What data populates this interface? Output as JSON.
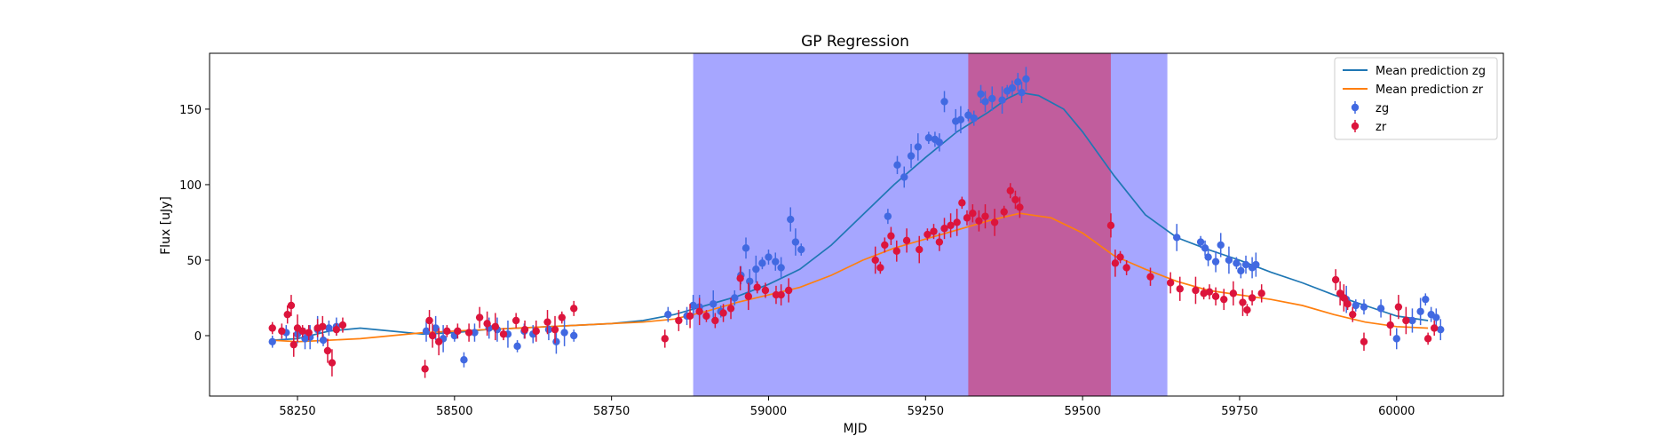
{
  "chart_data": {
    "type": "scatter",
    "title": "GP Regression",
    "xlabel": "MJD",
    "ylabel": "Flux [uJy]",
    "xlim": [
      58110,
      60170
    ],
    "ylim": [
      -40,
      187
    ],
    "xticks": [
      58250,
      58500,
      58750,
      59000,
      59250,
      59500,
      59750,
      60000
    ],
    "yticks": [
      0,
      50,
      100,
      150
    ],
    "legend_position": "top-right",
    "legend": [
      "Mean prediction zg",
      "Mean prediction zr",
      "zg",
      "zr"
    ],
    "shaded_regions": [
      {
        "x": [
          58880,
          59635
        ],
        "color": "#6666ff",
        "opacity": 0.58
      },
      {
        "x": [
          59318,
          59545
        ],
        "color": "#dc143c",
        "opacity": 0.5
      }
    ],
    "lines": [
      {
        "name": "Mean prediction zg",
        "color": "#1f77b4",
        "x": [
          58210,
          58250,
          58300,
          58350,
          58400,
          58450,
          58500,
          58550,
          58600,
          58650,
          58700,
          58750,
          58800,
          58850,
          58900,
          58950,
          59000,
          59050,
          59100,
          59150,
          59200,
          59250,
          59300,
          59350,
          59380,
          59400,
          59430,
          59470,
          59500,
          59550,
          59600,
          59650,
          59700,
          59750,
          59800,
          59850,
          59900,
          59950,
          60000,
          60050
        ],
        "y": [
          -3,
          -2,
          3,
          5,
          3,
          1,
          2,
          4,
          5,
          6,
          7,
          8,
          10,
          14,
          20,
          26,
          34,
          44,
          60,
          80,
          100,
          118,
          135,
          148,
          157,
          161,
          159,
          150,
          135,
          106,
          80,
          65,
          57,
          50,
          42,
          35,
          27,
          20,
          13,
          10
        ]
      },
      {
        "name": "Mean prediction zr",
        "color": "#ff7f0e",
        "x": [
          58210,
          58250,
          58300,
          58350,
          58400,
          58450,
          58500,
          58550,
          58600,
          58650,
          58700,
          58750,
          58800,
          58850,
          58900,
          58950,
          59000,
          59050,
          59100,
          59150,
          59200,
          59250,
          59300,
          59350,
          59400,
          59450,
          59500,
          59550,
          59600,
          59650,
          59700,
          59750,
          59800,
          59850,
          59900,
          59950,
          60000,
          60050
        ],
        "y": [
          -3,
          -4,
          -3,
          -2,
          0,
          2,
          3,
          4,
          5,
          6,
          7,
          8,
          9,
          11,
          16,
          22,
          27,
          32,
          40,
          50,
          58,
          64,
          70,
          76,
          81,
          78,
          68,
          53,
          44,
          36,
          30,
          27,
          24,
          20,
          14,
          9,
          6,
          5
        ]
      }
    ],
    "series": [
      {
        "name": "zg",
        "color": "#4169e1",
        "points": [
          [
            58210,
            -4
          ],
          [
            58232,
            2
          ],
          [
            58250,
            1
          ],
          [
            58262,
            -2
          ],
          [
            58270,
            -1
          ],
          [
            58282,
            4
          ],
          [
            58291,
            -3
          ],
          [
            58300,
            5
          ],
          [
            58312,
            6
          ],
          [
            58455,
            3
          ],
          [
            58470,
            5
          ],
          [
            58482,
            -2
          ],
          [
            58500,
            0
          ],
          [
            58515,
            -16
          ],
          [
            58532,
            2
          ],
          [
            58555,
            5
          ],
          [
            58568,
            4
          ],
          [
            58585,
            1
          ],
          [
            58600,
            -7
          ],
          [
            58611,
            3
          ],
          [
            58625,
            1
          ],
          [
            58650,
            4
          ],
          [
            58662,
            -4
          ],
          [
            58675,
            2
          ],
          [
            58690,
            0
          ],
          [
            58840,
            14
          ],
          [
            58870,
            13
          ],
          [
            58880,
            20
          ],
          [
            58890,
            19
          ],
          [
            58912,
            21
          ],
          [
            58924,
            16
          ],
          [
            58946,
            25
          ],
          [
            58956,
            40
          ],
          [
            58964,
            58
          ],
          [
            58970,
            36
          ],
          [
            58980,
            44
          ],
          [
            58990,
            48
          ],
          [
            59000,
            52
          ],
          [
            59011,
            49
          ],
          [
            59020,
            45
          ],
          [
            59035,
            77
          ],
          [
            59043,
            62
          ],
          [
            59052,
            57
          ],
          [
            59190,
            79
          ],
          [
            59205,
            113
          ],
          [
            59216,
            105
          ],
          [
            59227,
            119
          ],
          [
            59238,
            125
          ],
          [
            59255,
            131
          ],
          [
            59265,
            130
          ],
          [
            59272,
            128
          ],
          [
            59280,
            155
          ],
          [
            59298,
            142
          ],
          [
            59306,
            143
          ],
          [
            59318,
            146
          ],
          [
            59327,
            144
          ],
          [
            59338,
            160
          ],
          [
            59345,
            155
          ],
          [
            59356,
            157
          ],
          [
            59372,
            156
          ],
          [
            59380,
            162
          ],
          [
            59388,
            164
          ],
          [
            59397,
            168
          ],
          [
            59403,
            161
          ],
          [
            59410,
            170
          ],
          [
            59650,
            65
          ],
          [
            59688,
            62
          ],
          [
            59695,
            58
          ],
          [
            59700,
            52
          ],
          [
            59712,
            49
          ],
          [
            59720,
            60
          ],
          [
            59733,
            50
          ],
          [
            59745,
            48
          ],
          [
            59752,
            43
          ],
          [
            59760,
            47
          ],
          [
            59770,
            45
          ],
          [
            59776,
            47
          ],
          [
            59920,
            24
          ],
          [
            59935,
            20
          ],
          [
            59948,
            19
          ],
          [
            59975,
            18
          ],
          [
            60000,
            -2
          ],
          [
            60025,
            10
          ],
          [
            60038,
            16
          ],
          [
            60046,
            24
          ],
          [
            60055,
            14
          ],
          [
            60063,
            12
          ],
          [
            60070,
            4
          ]
        ]
      },
      {
        "name": "zr",
        "color": "#dc143c",
        "points": [
          [
            58210,
            5
          ],
          [
            58225,
            3
          ],
          [
            58234,
            14
          ],
          [
            58240,
            20
          ],
          [
            58244,
            -6
          ],
          [
            58250,
            5
          ],
          [
            58258,
            3
          ],
          [
            58268,
            2
          ],
          [
            58282,
            5
          ],
          [
            58290,
            6
          ],
          [
            58298,
            -10
          ],
          [
            58305,
            -18
          ],
          [
            58312,
            4
          ],
          [
            58322,
            7
          ],
          [
            58453,
            -22
          ],
          [
            58460,
            10
          ],
          [
            58465,
            0
          ],
          [
            58475,
            -4
          ],
          [
            58488,
            3
          ],
          [
            58505,
            3
          ],
          [
            58523,
            2
          ],
          [
            58540,
            12
          ],
          [
            58552,
            8
          ],
          [
            58565,
            6
          ],
          [
            58578,
            1
          ],
          [
            58598,
            10
          ],
          [
            58612,
            4
          ],
          [
            58630,
            3
          ],
          [
            58648,
            9
          ],
          [
            58660,
            4
          ],
          [
            58671,
            12
          ],
          [
            58690,
            18
          ],
          [
            58835,
            -2
          ],
          [
            58857,
            10
          ],
          [
            58875,
            13
          ],
          [
            58890,
            16
          ],
          [
            58901,
            13
          ],
          [
            58915,
            10
          ],
          [
            58928,
            15
          ],
          [
            58940,
            18
          ],
          [
            58955,
            38
          ],
          [
            58968,
            26
          ],
          [
            58982,
            32
          ],
          [
            58995,
            30
          ],
          [
            59012,
            27
          ],
          [
            59020,
            27
          ],
          [
            59032,
            30
          ],
          [
            59170,
            50
          ],
          [
            59178,
            45
          ],
          [
            59185,
            60
          ],
          [
            59195,
            66
          ],
          [
            59204,
            56
          ],
          [
            59220,
            63
          ],
          [
            59240,
            57
          ],
          [
            59253,
            67
          ],
          [
            59263,
            69
          ],
          [
            59272,
            62
          ],
          [
            59280,
            71
          ],
          [
            59290,
            73
          ],
          [
            59300,
            75
          ],
          [
            59308,
            88
          ],
          [
            59316,
            78
          ],
          [
            59325,
            81
          ],
          [
            59335,
            76
          ],
          [
            59345,
            79
          ],
          [
            59360,
            75
          ],
          [
            59375,
            82
          ],
          [
            59385,
            96
          ],
          [
            59393,
            90
          ],
          [
            59400,
            85
          ],
          [
            59545,
            73
          ],
          [
            59552,
            48
          ],
          [
            59560,
            52
          ],
          [
            59570,
            45
          ],
          [
            59608,
            39
          ],
          [
            59640,
            35
          ],
          [
            59655,
            31
          ],
          [
            59680,
            30
          ],
          [
            59693,
            28
          ],
          [
            59702,
            29
          ],
          [
            59712,
            26
          ],
          [
            59725,
            24
          ],
          [
            59740,
            28
          ],
          [
            59755,
            22
          ],
          [
            59762,
            17
          ],
          [
            59770,
            25
          ],
          [
            59785,
            28
          ],
          [
            59903,
            37
          ],
          [
            59910,
            28
          ],
          [
            59916,
            25
          ],
          [
            59922,
            21
          ],
          [
            59930,
            14
          ],
          [
            59948,
            -4
          ],
          [
            59990,
            7
          ],
          [
            60003,
            19
          ],
          [
            60015,
            10
          ],
          [
            60050,
            -2
          ],
          [
            60060,
            5
          ]
        ]
      }
    ]
  }
}
